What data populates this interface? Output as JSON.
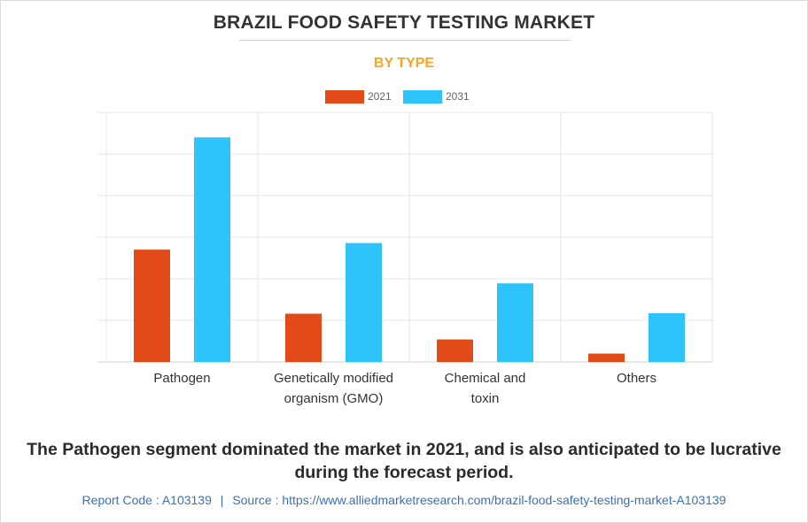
{
  "header": {
    "title": "BRAZIL FOOD SAFETY TESTING MARKET",
    "subtitle": "BY TYPE"
  },
  "legend": [
    {
      "label": "2021",
      "color": "#e24a17"
    },
    {
      "label": "2031",
      "color": "#2ec4fb"
    }
  ],
  "chart_data": {
    "type": "bar",
    "title": "BRAZIL FOOD SAFETY TESTING MARKET",
    "subtitle": "BY TYPE",
    "categories": [
      [
        "Pathogen"
      ],
      [
        "Genetically modified",
        "organism (GMO)"
      ],
      [
        "Chemical and",
        "toxin"
      ],
      [
        "Others"
      ]
    ],
    "series": [
      {
        "name": "2021",
        "color": "#e24a17",
        "values": [
          27,
          11.6,
          5.4,
          2.0
        ]
      },
      {
        "name": "2031",
        "color": "#2ec4fb",
        "values": [
          54,
          28.6,
          18.9,
          11.7
        ]
      }
    ],
    "xlabel": "",
    "ylabel": "",
    "ylim": [
      0,
      60
    ],
    "grid": true,
    "legend_position": "top-center"
  },
  "summary": "The Pathogen segment dominated the market in 2021, and is also anticipated to be lucrative during the forecast period.",
  "footer": {
    "report_code": "Report Code : A103139",
    "separator": "|",
    "source": "Source : https://www.alliedmarketresearch.com/brazil-food-safety-testing-market-A103139"
  }
}
